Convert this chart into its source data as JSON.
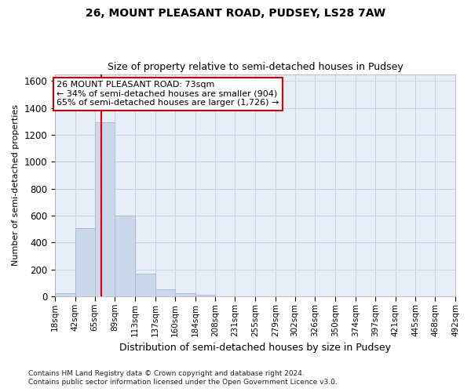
{
  "title1": "26, MOUNT PLEASANT ROAD, PUDSEY, LS28 7AW",
  "title2": "Size of property relative to semi-detached houses in Pudsey",
  "xlabel": "Distribution of semi-detached houses by size in Pudsey",
  "ylabel": "Number of semi-detached properties",
  "footnote": "Contains HM Land Registry data © Crown copyright and database right 2024.\nContains public sector information licensed under the Open Government Licence v3.0.",
  "bar_edges": [
    18,
    42,
    65,
    89,
    113,
    137,
    160,
    184,
    208,
    231,
    255,
    279,
    302,
    326,
    350,
    374,
    397,
    421,
    445,
    468,
    492
  ],
  "bar_values": [
    25,
    510,
    1290,
    600,
    170,
    55,
    25,
    15,
    0,
    0,
    0,
    0,
    0,
    0,
    0,
    0,
    0,
    0,
    0,
    0
  ],
  "bar_color": "#ccd8ea",
  "bar_edge_color": "#aabdd4",
  "property_size": 73,
  "red_line_color": "#cc0000",
  "annotation_text": "26 MOUNT PLEASANT ROAD: 73sqm\n← 34% of semi-detached houses are smaller (904)\n65% of semi-detached houses are larger (1,726) →",
  "annotation_box_color": "#cc0000",
  "ylim": [
    0,
    1650
  ],
  "yticks": [
    0,
    200,
    400,
    600,
    800,
    1000,
    1200,
    1400,
    1600
  ],
  "grid_color": "#c8d4e4",
  "bg_color": "#e8eef8"
}
